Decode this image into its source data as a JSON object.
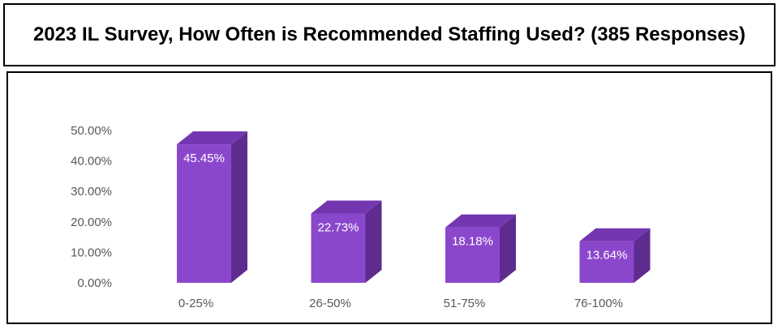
{
  "title": "2023 IL Survey, How Often is Recommended Staffing Used? (385 Responses)",
  "chart_data": {
    "type": "bar",
    "categories": [
      "0-25%",
      "26-50%",
      "51-75%",
      "76-100%"
    ],
    "values": [
      45.45,
      22.73,
      18.18,
      13.64
    ],
    "data_labels": [
      "45.45%",
      "22.73%",
      "18.18%",
      "13.64%"
    ],
    "y_ticks": [
      "0.00%",
      "10.00%",
      "20.00%",
      "30.00%",
      "40.00%",
      "50.00%"
    ],
    "ylim": [
      0,
      50
    ],
    "title": "",
    "xlabel": "",
    "ylabel": "",
    "grid": false,
    "style_3d": true,
    "colors": {
      "front": "#8B47CC",
      "side": "#5E2C8E",
      "top": "#7436B0"
    }
  }
}
